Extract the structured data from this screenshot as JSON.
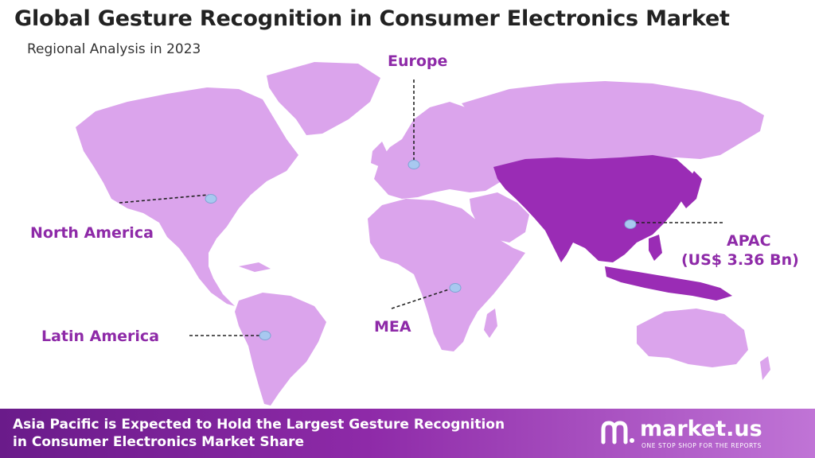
{
  "header": {
    "title": "Global Gesture Recognition in Consumer Electronics Market",
    "subtitle": "Regional Analysis in 2023"
  },
  "regions": [
    {
      "key": "north_america",
      "label": "North America"
    },
    {
      "key": "europe",
      "label": "Europe"
    },
    {
      "key": "apac",
      "label": "APAC",
      "value": "(US$ 3.36 Bn)"
    },
    {
      "key": "latin_america",
      "label": "Latin America"
    },
    {
      "key": "mea",
      "label": "MEA"
    }
  ],
  "footer": {
    "text": "Asia Pacific is Expected to Hold the Largest Gesture Recognition in Consumer Electronics Market Share",
    "brand_name": "market.us",
    "brand_tagline": "ONE STOP SHOP FOR THE REPORTS"
  },
  "colors": {
    "land": "#dba4ec",
    "highlight": "#9a2cb5",
    "label": "#8e2aa8",
    "marker": "#a8c8f0",
    "footer_start": "#6a1b8a",
    "footer_end": "#c074d6"
  }
}
